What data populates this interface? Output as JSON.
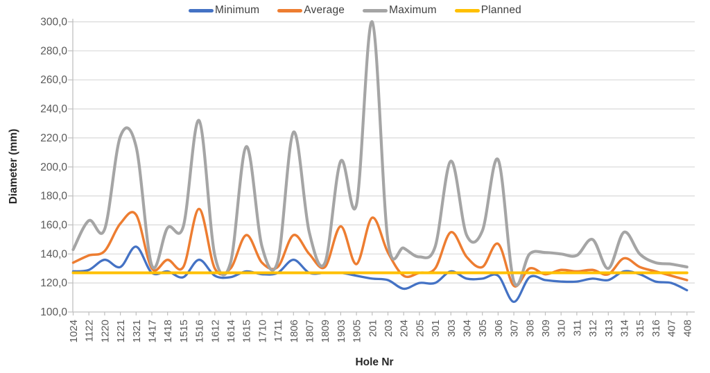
{
  "chart_data": {
    "type": "line",
    "title": "",
    "xlabel": "Hole Nr",
    "ylabel": "Diameter (mm)",
    "ylim": [
      100,
      300
    ],
    "ytick_step": 20,
    "ytick_labels": [
      "100,0",
      "120,0",
      "140,0",
      "160,0",
      "180,0",
      "200,0",
      "220,0",
      "240,0",
      "260,0",
      "280,0",
      "300,0"
    ],
    "grid": true,
    "legend_position": "top",
    "line_style": "smooth",
    "categories": [
      "1024",
      "1122",
      "1220",
      "1221",
      "1321",
      "1417",
      "1418",
      "1515",
      "1516",
      "1612",
      "1614",
      "1615",
      "1710",
      "1711",
      "1806",
      "1807",
      "1809",
      "1903",
      "1905",
      "201",
      "203",
      "204",
      "205",
      "301",
      "303",
      "304",
      "305",
      "306",
      "307",
      "308",
      "309",
      "310",
      "311",
      "312",
      "313",
      "314",
      "315",
      "316",
      "407",
      "408"
    ],
    "series": [
      {
        "name": "Minimum",
        "color": "#4472C4",
        "stroke_width": 3.3,
        "values": [
          128,
          129,
          136,
          131,
          145,
          127,
          128,
          124,
          136,
          125,
          124,
          128,
          126,
          127,
          136,
          127,
          127,
          127,
          125,
          123,
          122,
          116,
          120,
          120,
          128,
          123,
          123,
          125,
          107,
          124,
          122,
          121,
          121,
          123,
          122,
          128,
          126,
          121,
          120,
          115
        ]
      },
      {
        "name": "Average",
        "color": "#ED7D31",
        "stroke_width": 3.5,
        "values": [
          134,
          139,
          142,
          161,
          167,
          130,
          136,
          131,
          171,
          130,
          130,
          153,
          134,
          131,
          153,
          140,
          131,
          159,
          133,
          165,
          141,
          125,
          127,
          130,
          155,
          138,
          131,
          147,
          118,
          130,
          126,
          129,
          128,
          129,
          126,
          137,
          131,
          128,
          125,
          122
        ]
      },
      {
        "name": "Maximum",
        "color": "#A5A5A5",
        "stroke_width": 4.2,
        "values": [
          143,
          163,
          157,
          221,
          214,
          132,
          158,
          159,
          232,
          139,
          134,
          214,
          145,
          135,
          224,
          155,
          134,
          204,
          174,
          300,
          149,
          144,
          138,
          145,
          204,
          153,
          156,
          205,
          121,
          140,
          141,
          140,
          139,
          150,
          130,
          155,
          140,
          134,
          133,
          131
        ]
      },
      {
        "name": "Planned",
        "color": "#FFC000",
        "stroke_width": 4.0,
        "values": [
          127,
          127,
          127,
          127,
          127,
          127,
          127,
          127,
          127,
          127,
          127,
          127,
          127,
          127,
          127,
          127,
          127,
          127,
          127,
          127,
          127,
          127,
          127,
          127,
          127,
          127,
          127,
          127,
          127,
          127,
          127,
          127,
          127,
          127,
          127,
          127,
          127,
          127,
          127,
          127
        ]
      }
    ]
  },
  "style": {
    "gridline_color": "#D9D9D9",
    "axis_color": "#BFBFBF",
    "tick_label_color": "#595959",
    "axis_title_color": "#262626"
  }
}
